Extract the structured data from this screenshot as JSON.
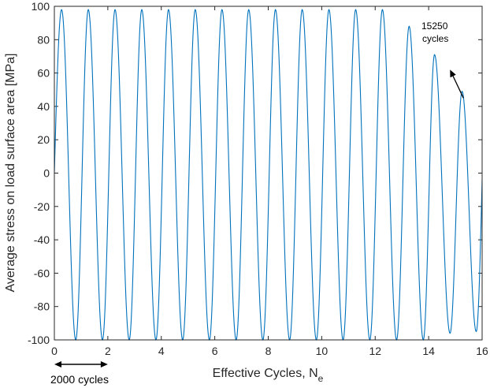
{
  "chart_data": {
    "type": "line",
    "title": "",
    "xlabel_main": "Effective Cycles, N",
    "xlabel_sub": "e",
    "ylabel": "Average stress on load surface area [MPa]",
    "xlim": [
      0,
      16
    ],
    "ylim": [
      -100,
      100
    ],
    "x_ticks": [
      "0",
      "2",
      "4",
      "6",
      "8",
      "10",
      "12",
      "14",
      "16"
    ],
    "y_ticks": [
      "100",
      "80",
      "60",
      "40",
      "20",
      "0",
      "-20",
      "-40",
      "-60",
      "-80",
      "-100"
    ],
    "grid": false,
    "line_color": "#0072BD",
    "series": [
      {
        "name": "",
        "cycles_per_unit": 1,
        "peaks": [
          {
            "x": 0.27,
            "y": 98
          },
          {
            "x": 1.27,
            "y": 98
          },
          {
            "x": 2.27,
            "y": 98
          },
          {
            "x": 3.27,
            "y": 98
          },
          {
            "x": 4.27,
            "y": 98
          },
          {
            "x": 5.27,
            "y": 98
          },
          {
            "x": 6.27,
            "y": 98
          },
          {
            "x": 7.27,
            "y": 98
          },
          {
            "x": 8.27,
            "y": 98
          },
          {
            "x": 9.27,
            "y": 98
          },
          {
            "x": 10.27,
            "y": 98
          },
          {
            "x": 11.27,
            "y": 98
          },
          {
            "x": 12.27,
            "y": 98
          },
          {
            "x": 13.27,
            "y": 88
          },
          {
            "x": 14.22,
            "y": 71
          },
          {
            "x": 15.25,
            "y": 49
          }
        ],
        "troughs": [
          {
            "x": 0.8,
            "y": -100
          },
          {
            "x": 1.8,
            "y": -100
          },
          {
            "x": 2.8,
            "y": -100
          },
          {
            "x": 3.8,
            "y": -100
          },
          {
            "x": 4.8,
            "y": -100
          },
          {
            "x": 5.8,
            "y": -100
          },
          {
            "x": 6.8,
            "y": -100
          },
          {
            "x": 7.8,
            "y": -100
          },
          {
            "x": 8.8,
            "y": -100
          },
          {
            "x": 9.8,
            "y": -100
          },
          {
            "x": 10.8,
            "y": -100
          },
          {
            "x": 11.8,
            "y": -100
          },
          {
            "x": 12.8,
            "y": -100
          },
          {
            "x": 13.8,
            "y": -100
          },
          {
            "x": 14.8,
            "y": -96
          },
          {
            "x": 15.78,
            "y": -95
          }
        ],
        "start": {
          "x": 0,
          "y": 0
        },
        "end": {
          "x": 16,
          "y": -4
        }
      }
    ],
    "annotations": [
      {
        "text_line1": "15250",
        "text_line2": "cycles",
        "arrow_from": {
          "x": 15.3,
          "y": 45
        },
        "arrow_to": {
          "x": 14.8,
          "y": 62
        }
      },
      {
        "text": "2000 cycles",
        "arrow_from_x": 0,
        "arrow_to_x": 2
      }
    ]
  }
}
